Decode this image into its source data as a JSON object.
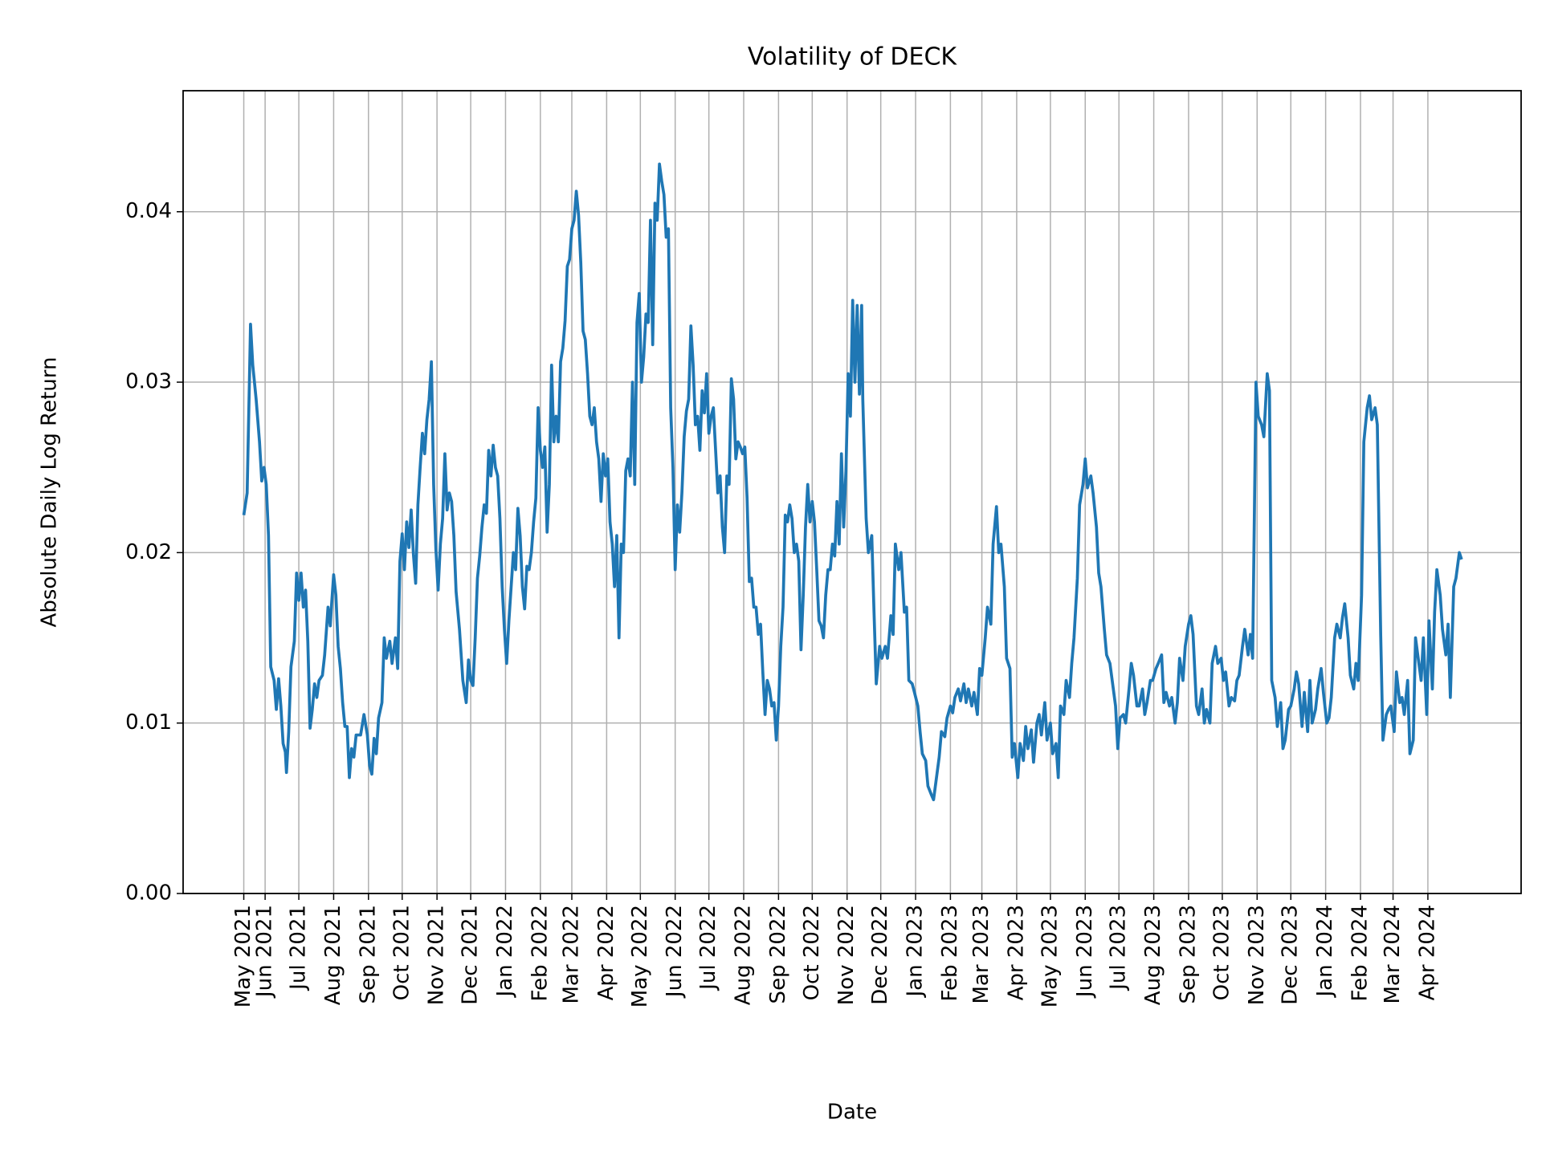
{
  "chart_data": {
    "type": "line",
    "title": "Volatility of DECK",
    "xlabel": "Date",
    "ylabel": "Absolute Daily Log Return",
    "color": "#1f77b4",
    "grid": true,
    "xlim": [
      -54,
      1137
    ],
    "ylim": [
      0,
      0.0471
    ],
    "xticks": [
      {
        "value": 0,
        "label": "May 2021"
      },
      {
        "value": 19,
        "label": "Jun 2021"
      },
      {
        "value": 49,
        "label": "Jul 2021"
      },
      {
        "value": 80,
        "label": "Aug 2021"
      },
      {
        "value": 111,
        "label": "Sep 2021"
      },
      {
        "value": 141,
        "label": "Oct 2021"
      },
      {
        "value": 172,
        "label": "Nov 2021"
      },
      {
        "value": 202,
        "label": "Dec 2021"
      },
      {
        "value": 233,
        "label": "Jan 2022"
      },
      {
        "value": 264,
        "label": "Feb 2022"
      },
      {
        "value": 292,
        "label": "Mar 2022"
      },
      {
        "value": 323,
        "label": "Apr 2022"
      },
      {
        "value": 353,
        "label": "May 2022"
      },
      {
        "value": 384,
        "label": "Jun 2022"
      },
      {
        "value": 414,
        "label": "Jul 2022"
      },
      {
        "value": 445,
        "label": "Aug 2022"
      },
      {
        "value": 476,
        "label": "Sep 2022"
      },
      {
        "value": 506,
        "label": "Oct 2022"
      },
      {
        "value": 537,
        "label": "Nov 2022"
      },
      {
        "value": 567,
        "label": "Dec 2022"
      },
      {
        "value": 598,
        "label": "Jan 2023"
      },
      {
        "value": 629,
        "label": "Feb 2023"
      },
      {
        "value": 657,
        "label": "Mar 2023"
      },
      {
        "value": 688,
        "label": "Apr 2023"
      },
      {
        "value": 718,
        "label": "May 2023"
      },
      {
        "value": 749,
        "label": "Jun 2023"
      },
      {
        "value": 779,
        "label": "Jul 2023"
      },
      {
        "value": 810,
        "label": "Aug 2023"
      },
      {
        "value": 841,
        "label": "Sep 2023"
      },
      {
        "value": 871,
        "label": "Oct 2023"
      },
      {
        "value": 902,
        "label": "Nov 2023"
      },
      {
        "value": 932,
        "label": "Dec 2023"
      },
      {
        "value": 963,
        "label": "Jan 2024"
      },
      {
        "value": 994,
        "label": "Feb 2024"
      },
      {
        "value": 1023,
        "label": "Mar 2024"
      },
      {
        "value": 1054,
        "label": "Apr 2024"
      }
    ],
    "yticks": [
      {
        "value": 0,
        "label": "0.00"
      },
      0.01,
      0.02,
      0.03,
      0.04
    ],
    "x": [
      0,
      3,
      5,
      6,
      8,
      11,
      14,
      16,
      18,
      20,
      22,
      24,
      27,
      29,
      31,
      33,
      35,
      37,
      38,
      40,
      42,
      45,
      47,
      49,
      51,
      53,
      55,
      57,
      59,
      61,
      63,
      65,
      67,
      70,
      72,
      75,
      77,
      78,
      80,
      82,
      84,
      86,
      88,
      90,
      92,
      94,
      96,
      98,
      100,
      104,
      107,
      110,
      112,
      114,
      116,
      118,
      120,
      123,
      125,
      127,
      130,
      132,
      135,
      137,
      139,
      141,
      143,
      145,
      147,
      149,
      151,
      153,
      155,
      157,
      159,
      161,
      163,
      165,
      167,
      169,
      171,
      173,
      175,
      177,
      179,
      181,
      183,
      185,
      187,
      189,
      192,
      195,
      198,
      200,
      202,
      204,
      206,
      208,
      210,
      212,
      214,
      216,
      218,
      220,
      222,
      224,
      226,
      228,
      230,
      232,
      234,
      236,
      238,
      240,
      242,
      244,
      246,
      248,
      250,
      252,
      254,
      256,
      258,
      260,
      262,
      264,
      266,
      268,
      270,
      272,
      274,
      276,
      278,
      280,
      282,
      284,
      286,
      288,
      290,
      292,
      294,
      296,
      298,
      300,
      302,
      304,
      306,
      308,
      310,
      312,
      314,
      316,
      318,
      320,
      322,
      324,
      326,
      328,
      330,
      332,
      334,
      336,
      338,
      340,
      342,
      344,
      346,
      348,
      350,
      352,
      354,
      356,
      358,
      360,
      362,
      364,
      366,
      368,
      370,
      372,
      374,
      376,
      378,
      380,
      382,
      384,
      386,
      388,
      390,
      392,
      394,
      396,
      398,
      400,
      402,
      404,
      406,
      408,
      410,
      412,
      414,
      416,
      418,
      420,
      422,
      424,
      426,
      428,
      430,
      432,
      434,
      436,
      438,
      440,
      442,
      444,
      446,
      448,
      450,
      452,
      454,
      456,
      458,
      460,
      462,
      464,
      466,
      468,
      470,
      472,
      474,
      476,
      478,
      480,
      482,
      484,
      486,
      488,
      490,
      492,
      494,
      496,
      498,
      500,
      502,
      504,
      506,
      508,
      510,
      512,
      514,
      516,
      518,
      520,
      522,
      524,
      526,
      528,
      530,
      532,
      534,
      536,
      538,
      540,
      542,
      544,
      546,
      548,
      550,
      551,
      554,
      556,
      559,
      561,
      563,
      566,
      568,
      571,
      573,
      576,
      578,
      580,
      583,
      585,
      588,
      590,
      592,
      595,
      597,
      600,
      602,
      604,
      607,
      609,
      612,
      614,
      616,
      619,
      621,
      624,
      626,
      629,
      631,
      633,
      636,
      638,
      641,
      643,
      645,
      648,
      650,
      653,
      655,
      657,
      660,
      662,
      665,
      667,
      670,
      672,
      674,
      677,
      679,
      682,
      684,
      686,
      689,
      691,
      694,
      696,
      698,
      701,
      703,
      706,
      708,
      710,
      713,
      715,
      718,
      720,
      723,
      725,
      727,
      730,
      732,
      735,
      737,
      739,
      742,
      744,
      747,
      749,
      751,
      754,
      756,
      759,
      761,
      763,
      766,
      768,
      771,
      773,
      776,
      778,
      780,
      783,
      785,
      788,
      790,
      792,
      795,
      797,
      800,
      802,
      804,
      807,
      809,
      812,
      814,
      817,
      819,
      821,
      824,
      826,
      829,
      831,
      833,
      836,
      838,
      841,
      843,
      845,
      848,
      850,
      853,
      855,
      857,
      860,
      862,
      865,
      867,
      870,
      872,
      874,
      877,
      879,
      882,
      884,
      886,
      889,
      891,
      894,
      896,
      898,
      901,
      903,
      906,
      908,
      911,
      913,
      915,
      918,
      920,
      923,
      925,
      927,
      930,
      932,
      935,
      937,
      939,
      942,
      944,
      947,
      949,
      951,
      954,
      956,
      959,
      961,
      964,
      966,
      968,
      971,
      973,
      976,
      978,
      980,
      983,
      985,
      988,
      990,
      992,
      995,
      997,
      1000,
      1002,
      1004,
      1007,
      1009,
      1012,
      1014,
      1017,
      1019,
      1021,
      1024,
      1026,
      1029,
      1031,
      1033,
      1036,
      1038,
      1041,
      1043,
      1045,
      1048,
      1050,
      1053,
      1055,
      1058,
      1060,
      1062,
      1065,
      1067,
      1070,
      1072,
      1074,
      1077,
      1079,
      1082,
      1084
    ],
    "values": [
      0.0222,
      0.0235,
      0.03,
      0.0334,
      0.031,
      0.029,
      0.0265,
      0.0242,
      0.025,
      0.024,
      0.021,
      0.0133,
      0.0125,
      0.0108,
      0.0126,
      0.011,
      0.0088,
      0.0083,
      0.0071,
      0.0095,
      0.0133,
      0.0148,
      0.0188,
      0.0172,
      0.0188,
      0.0168,
      0.0178,
      0.0148,
      0.0097,
      0.0108,
      0.0123,
      0.0115,
      0.0125,
      0.0128,
      0.014,
      0.0168,
      0.0157,
      0.0168,
      0.0187,
      0.0175,
      0.0145,
      0.0132,
      0.0112,
      0.0098,
      0.0098,
      0.0068,
      0.0085,
      0.008,
      0.0093,
      0.0093,
      0.0105,
      0.0093,
      0.0075,
      0.007,
      0.0091,
      0.0082,
      0.0103,
      0.0112,
      0.015,
      0.0138,
      0.0148,
      0.0135,
      0.015,
      0.0132,
      0.0195,
      0.0211,
      0.019,
      0.0218,
      0.0203,
      0.0225,
      0.0199,
      0.0182,
      0.0228,
      0.025,
      0.027,
      0.0258,
      0.0278,
      0.029,
      0.0312,
      0.024,
      0.0202,
      0.0178,
      0.0205,
      0.022,
      0.0258,
      0.0225,
      0.0235,
      0.023,
      0.021,
      0.0177,
      0.0155,
      0.0125,
      0.0112,
      0.0137,
      0.0125,
      0.0122,
      0.015,
      0.0185,
      0.0198,
      0.0215,
      0.0228,
      0.0223,
      0.026,
      0.0245,
      0.0263,
      0.025,
      0.0245,
      0.022,
      0.018,
      0.0155,
      0.0135,
      0.016,
      0.018,
      0.02,
      0.019,
      0.0226,
      0.021,
      0.018,
      0.0167,
      0.0192,
      0.019,
      0.02,
      0.0218,
      0.0232,
      0.0285,
      0.026,
      0.025,
      0.0262,
      0.0212,
      0.024,
      0.031,
      0.0265,
      0.028,
      0.0265,
      0.0312,
      0.032,
      0.0336,
      0.0368,
      0.0372,
      0.039,
      0.0395,
      0.0412,
      0.0398,
      0.037,
      0.033,
      0.0325,
      0.0305,
      0.028,
      0.0275,
      0.0285,
      0.0265,
      0.0255,
      0.023,
      0.0258,
      0.0245,
      0.0255,
      0.0218,
      0.0205,
      0.018,
      0.021,
      0.015,
      0.0205,
      0.02,
      0.0248,
      0.0255,
      0.0245,
      0.03,
      0.024,
      0.0335,
      0.0352,
      0.03,
      0.0315,
      0.034,
      0.0335,
      0.0395,
      0.0322,
      0.0405,
      0.0395,
      0.0428,
      0.0418,
      0.041,
      0.0385,
      0.039,
      0.0285,
      0.025,
      0.019,
      0.0228,
      0.0212,
      0.0235,
      0.0268,
      0.0283,
      0.029,
      0.0333,
      0.031,
      0.0275,
      0.028,
      0.026,
      0.0295,
      0.0282,
      0.0305,
      0.027,
      0.028,
      0.0285,
      0.026,
      0.0235,
      0.0245,
      0.0215,
      0.02,
      0.0245,
      0.024,
      0.0302,
      0.029,
      0.0255,
      0.0265,
      0.0262,
      0.0258,
      0.0262,
      0.0232,
      0.0183,
      0.0185,
      0.0168,
      0.0168,
      0.0152,
      0.0158,
      0.013,
      0.0105,
      0.0125,
      0.012,
      0.011,
      0.0112,
      0.009,
      0.011,
      0.0145,
      0.0168,
      0.0222,
      0.0218,
      0.0228,
      0.022,
      0.02,
      0.0205,
      0.0195,
      0.0143,
      0.0175,
      0.0215,
      0.024,
      0.0218,
      0.023,
      0.0218,
      0.019,
      0.016,
      0.0157,
      0.015,
      0.0175,
      0.019,
      0.019,
      0.0205,
      0.0198,
      0.023,
      0.0205,
      0.0258,
      0.0215,
      0.0248,
      0.0305,
      0.028,
      0.0348,
      0.03,
      0.0345,
      0.0293,
      0.0345,
      0.029,
      0.022,
      0.02,
      0.021,
      0.0165,
      0.0123,
      0.0145,
      0.0138,
      0.0145,
      0.0138,
      0.0163,
      0.0152,
      0.0205,
      0.019,
      0.02,
      0.0165,
      0.0168,
      0.0125,
      0.0123,
      0.0118,
      0.011,
      0.0095,
      0.0082,
      0.0078,
      0.0063,
      0.0058,
      0.0055,
      0.0065,
      0.008,
      0.0095,
      0.0092,
      0.0103,
      0.011,
      0.0106,
      0.0115,
      0.012,
      0.0113,
      0.0123,
      0.0112,
      0.012,
      0.011,
      0.0118,
      0.0105,
      0.0132,
      0.0128,
      0.015,
      0.0168,
      0.0158,
      0.0205,
      0.0227,
      0.02,
      0.0205,
      0.018,
      0.0138,
      0.0132,
      0.008,
      0.0088,
      0.0068,
      0.0088,
      0.0078,
      0.0098,
      0.0085,
      0.0096,
      0.0077,
      0.01,
      0.0105,
      0.0093,
      0.0112,
      0.009,
      0.01,
      0.0082,
      0.0088,
      0.0068,
      0.011,
      0.0105,
      0.0125,
      0.0115,
      0.0135,
      0.015,
      0.0185,
      0.0228,
      0.024,
      0.0255,
      0.0238,
      0.0245,
      0.0235,
      0.0215,
      0.0188,
      0.018,
      0.0155,
      0.014,
      0.0135,
      0.0125,
      0.011,
      0.0085,
      0.0103,
      0.0105,
      0.01,
      0.012,
      0.0135,
      0.0128,
      0.011,
      0.011,
      0.012,
      0.0105,
      0.0112,
      0.0125,
      0.0125,
      0.0132,
      0.0135,
      0.014,
      0.0112,
      0.0118,
      0.011,
      0.0115,
      0.01,
      0.0112,
      0.0138,
      0.0125,
      0.0145,
      0.0158,
      0.0163,
      0.0152,
      0.011,
      0.0105,
      0.012,
      0.01,
      0.0108,
      0.01,
      0.0135,
      0.0145,
      0.0135,
      0.0138,
      0.0125,
      0.013,
      0.011,
      0.0115,
      0.0113,
      0.0125,
      0.0128,
      0.0145,
      0.0155,
      0.014,
      0.0152,
      0.0138,
      0.03,
      0.028,
      0.0275,
      0.0268,
      0.0305,
      0.0295,
      0.0125,
      0.0115,
      0.0098,
      0.0112,
      0.0085,
      0.009,
      0.0108,
      0.011,
      0.012,
      0.013,
      0.0123,
      0.0098,
      0.0118,
      0.0095,
      0.0125,
      0.01,
      0.0108,
      0.012,
      0.0132,
      0.0118,
      0.01,
      0.0103,
      0.0115,
      0.015,
      0.0158,
      0.015,
      0.0162,
      0.017,
      0.015,
      0.0128,
      0.012,
      0.0135,
      0.0125,
      0.0175,
      0.0265,
      0.0285,
      0.0292,
      0.0278,
      0.0285,
      0.0275,
      0.0152,
      0.009,
      0.0105,
      0.0108,
      0.011,
      0.0095,
      0.013,
      0.0112,
      0.0115,
      0.0105,
      0.0125,
      0.0082,
      0.009,
      0.015,
      0.014,
      0.0125,
      0.015,
      0.0105,
      0.016,
      0.012,
      0.0165,
      0.019,
      0.0175,
      0.0155,
      0.014,
      0.0158,
      0.0115,
      0.018,
      0.0185,
      0.02,
      0.0196
    ]
  }
}
